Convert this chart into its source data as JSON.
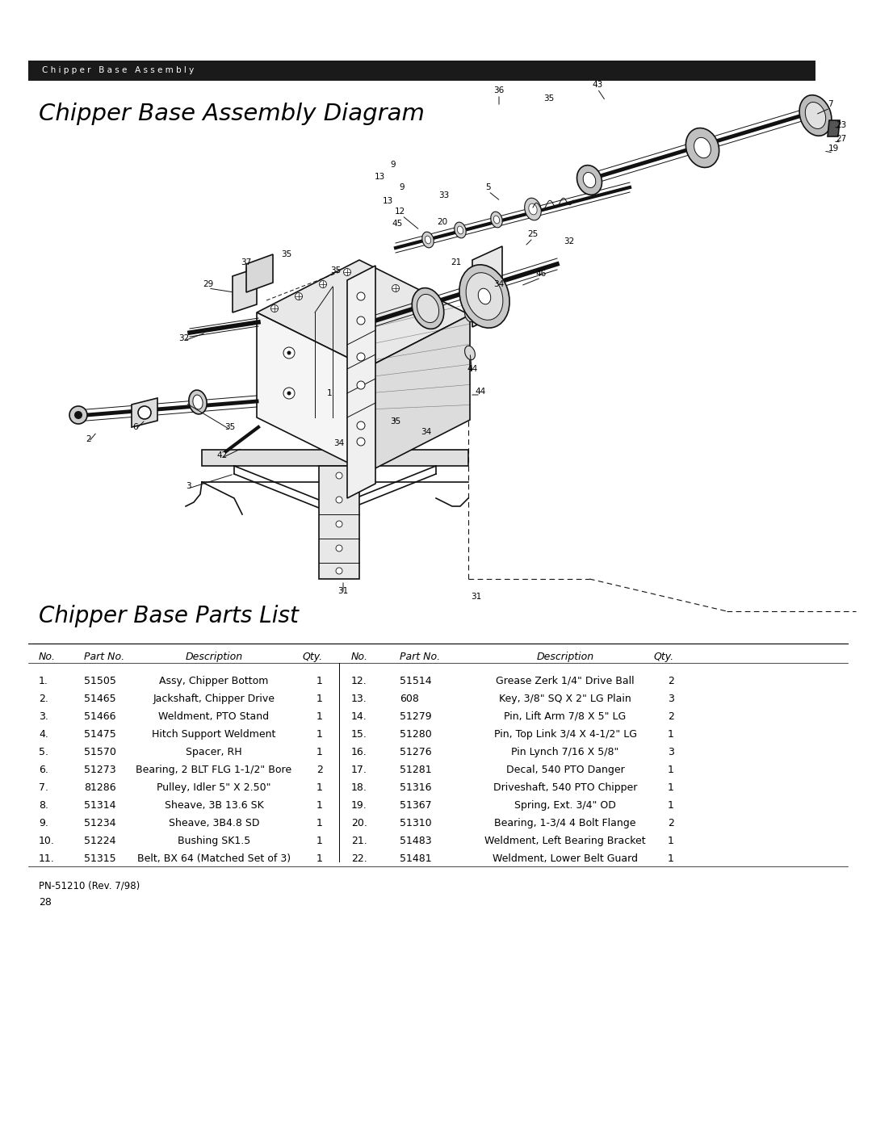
{
  "page_title_bar": "Chipper Base Assembly",
  "diagram_title": "Chipper Base Assembly Diagram",
  "parts_list_title": "Chipper Base Parts List",
  "footer_pn": "PN-51210 (Rev. 7/98)",
  "footer_page": "28",
  "background_color": "#ffffff",
  "header_bar_color": "#1a1a1a",
  "header_text_color": "#ffffff",
  "parts": [
    {
      "no": "1.",
      "part": "51505",
      "desc": "Assy, Chipper Bottom",
      "qty": "1"
    },
    {
      "no": "2.",
      "part": "51465",
      "desc": "Jackshaft, Chipper Drive",
      "qty": "1"
    },
    {
      "no": "3.",
      "part": "51466",
      "desc": "Weldment, PTO Stand",
      "qty": "1"
    },
    {
      "no": "4.",
      "part": "51475",
      "desc": "Hitch Support Weldment",
      "qty": "1"
    },
    {
      "no": "5.",
      "part": "51570",
      "desc": "Spacer, RH",
      "qty": "1"
    },
    {
      "no": "6.",
      "part": "51273",
      "desc": "Bearing, 2 BLT FLG 1-1/2\" Bore",
      "qty": "2"
    },
    {
      "no": "7.",
      "part": "81286",
      "desc": "Pulley, Idler 5\" X 2.50\"",
      "qty": "1"
    },
    {
      "no": "8.",
      "part": "51314",
      "desc": "Sheave, 3B 13.6 SK",
      "qty": "1"
    },
    {
      "no": "9.",
      "part": "51234",
      "desc": "Sheave, 3B4.8 SD",
      "qty": "1"
    },
    {
      "no": "10.",
      "part": "51224",
      "desc": "Bushing SK1.5",
      "qty": "1"
    },
    {
      "no": "11.",
      "part": "51315",
      "desc": "Belt, BX 64 (Matched Set of 3)",
      "qty": "1"
    }
  ],
  "parts_right": [
    {
      "no": "12.",
      "part": "51514",
      "desc": "Grease Zerk 1/4\" Drive Ball",
      "qty": "2"
    },
    {
      "no": "13.",
      "part": "608",
      "desc": "Key, 3/8\" SQ X 2\" LG Plain",
      "qty": "3"
    },
    {
      "no": "14.",
      "part": "51279",
      "desc": "Pin, Lift Arm 7/8 X 5\" LG",
      "qty": "2"
    },
    {
      "no": "15.",
      "part": "51280",
      "desc": "Pin, Top Link 3/4 X 4-1/2\" LG",
      "qty": "1"
    },
    {
      "no": "16.",
      "part": "51276",
      "desc": "Pin Lynch 7/16 X 5/8\"",
      "qty": "3"
    },
    {
      "no": "17.",
      "part": "51281",
      "desc": "Decal, 540 PTO Danger",
      "qty": "1"
    },
    {
      "no": "18.",
      "part": "51316",
      "desc": "Driveshaft, 540 PTO Chipper",
      "qty": "1"
    },
    {
      "no": "19.",
      "part": "51367",
      "desc": "Spring, Ext. 3/4\" OD",
      "qty": "1"
    },
    {
      "no": "20.",
      "part": "51310",
      "desc": "Bearing, 1-3/4 4 Bolt Flange",
      "qty": "2"
    },
    {
      "no": "21.",
      "part": "51483",
      "desc": "Weldment, Left Bearing Bracket",
      "qty": "1"
    },
    {
      "no": "22.",
      "part": "51481",
      "desc": "Weldment, Lower Belt Guard",
      "qty": "1"
    }
  ]
}
